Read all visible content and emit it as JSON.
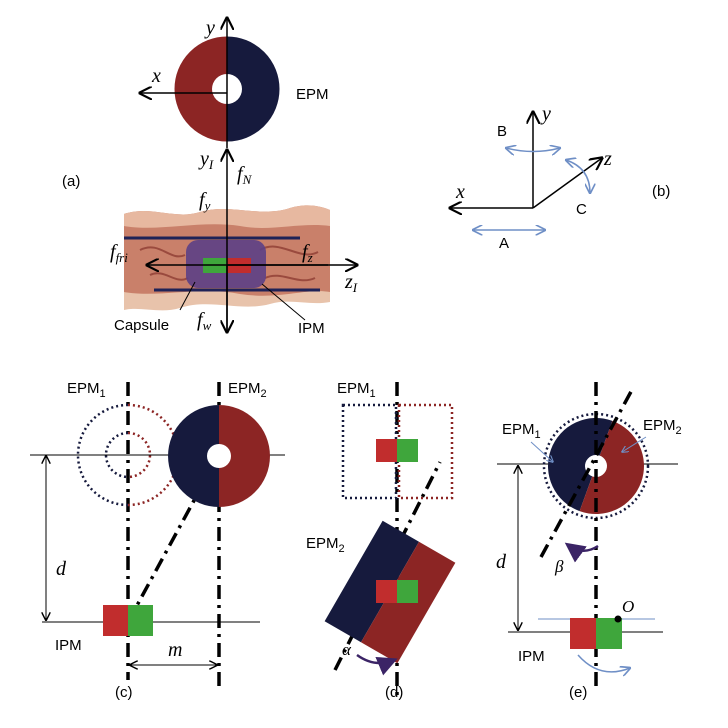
{
  "colors": {
    "magnet_red": "#8c2524",
    "magnet_navy": "#161a3d",
    "block_red": "#c12d2d",
    "block_green": "#3fa63c",
    "capsule_purple": "#5c3f86",
    "arrow_blue": "#6f8fc6"
  },
  "panel_a": {
    "label": "(a)",
    "axis_y": "y",
    "axis_x": "x",
    "epm": "EPM",
    "axis_yI_main": "y",
    "axis_yI_sub": "I",
    "axis_zI_main": "z",
    "axis_zI_sub": "I",
    "force_N_main": "f",
    "force_N_sub": "N",
    "force_y_main": "f",
    "force_y_sub": "y",
    "force_fri_main": "f",
    "force_fri_sub": "fri",
    "force_z_main": "f",
    "force_z_sub": "z",
    "force_w_main": "f",
    "force_w_sub": "w",
    "capsule": "Capsule",
    "ipm": "IPM"
  },
  "panel_b": {
    "label": "(b)",
    "axis_x": "x",
    "axis_y": "y",
    "axis_z": "z",
    "rot_a": "A",
    "rot_b": "B",
    "rot_c": "C"
  },
  "panel_c": {
    "label": "(c)",
    "epm1_main": "EPM",
    "epm1_sub": "1",
    "epm2_main": "EPM",
    "epm2_sub": "2",
    "d": "d",
    "m": "m",
    "ipm": "IPM"
  },
  "panel_d": {
    "label": "(d)",
    "epm1_main": "EPM",
    "epm1_sub": "1",
    "epm2_main": "EPM",
    "epm2_sub": "2",
    "alpha": "α"
  },
  "panel_e": {
    "label": "(e)",
    "epm1_main": "EPM",
    "epm1_sub": "1",
    "epm2_main": "EPM",
    "epm2_sub": "2",
    "d": "d",
    "beta": "β",
    "o": "O",
    "ipm": "IPM"
  }
}
